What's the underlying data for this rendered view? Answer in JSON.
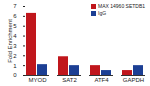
{
  "chart_data": {
    "type": "bar",
    "categories": [
      "MYOD",
      "SAT2",
      "ATF4",
      "GAPDH"
    ],
    "series": [
      {
        "name": "MAX 14960 SETDB1",
        "color": "#c0161c",
        "values": [
          6.3,
          1.9,
          1.0,
          0.5
        ]
      },
      {
        "name": "IgG",
        "color": "#1c3f94",
        "values": [
          1.1,
          1.0,
          0.5,
          1.0
        ]
      }
    ],
    "ylabel": "Fold Enrichment",
    "ylim": [
      0,
      7
    ],
    "yticks": [
      0,
      1,
      2,
      3,
      4,
      5,
      6,
      7
    ],
    "legend": "upper right"
  }
}
